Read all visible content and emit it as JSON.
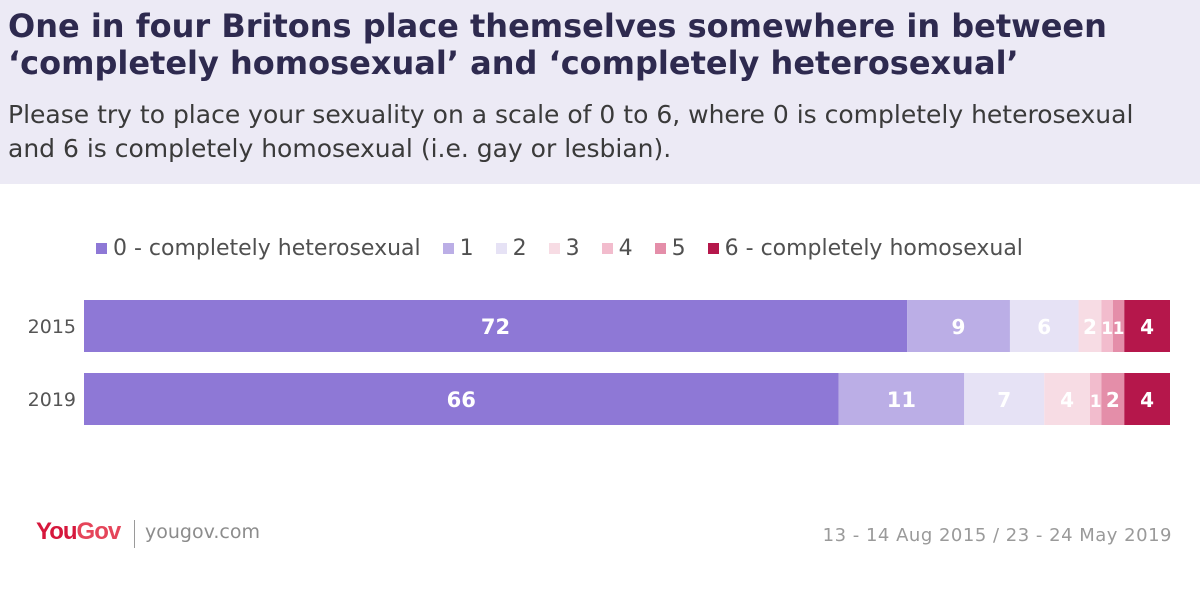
{
  "header": {
    "title_line1": "One in four Britons place themselves somewhere in between",
    "title_line2": "‘completely homosexual’ and ‘completely heterosexual’",
    "subtitle_line1": "Please try to place your sexuality on a scale of 0 to 6, where 0 is completely heterosexual",
    "subtitle_line2": "and 6 is completely homosexual (i.e. gay or lesbian)."
  },
  "footer": {
    "brand_you": "You",
    "brand_gov": "Gov",
    "url": "yougov.com",
    "dates": "13  -  14 Aug 2015 / 23 - 24 May  2019"
  },
  "chart_data": {
    "type": "bar",
    "orientation": "horizontal",
    "stacked": true,
    "normalized": true,
    "categories": [
      "2015",
      "2019"
    ],
    "series": [
      {
        "name": "0 - completely heterosexual",
        "color": "#8E78D6",
        "values": [
          72,
          66
        ]
      },
      {
        "name": "1",
        "color": "#BBAEE6",
        "values": [
          9,
          11
        ]
      },
      {
        "name": "2",
        "color": "#E6E2F5",
        "values": [
          6,
          7
        ]
      },
      {
        "name": "3",
        "color": "#F7DCE4",
        "values": [
          2,
          4
        ]
      },
      {
        "name": "4",
        "color": "#F2BCCD",
        "values": [
          1,
          1
        ]
      },
      {
        "name": "5",
        "color": "#E48EA9",
        "values": [
          1,
          2
        ]
      },
      {
        "name": "6 - completely homosexual",
        "color": "#B5174B",
        "values": [
          4,
          4
        ]
      }
    ],
    "legend_position": "top",
    "grid": false
  }
}
